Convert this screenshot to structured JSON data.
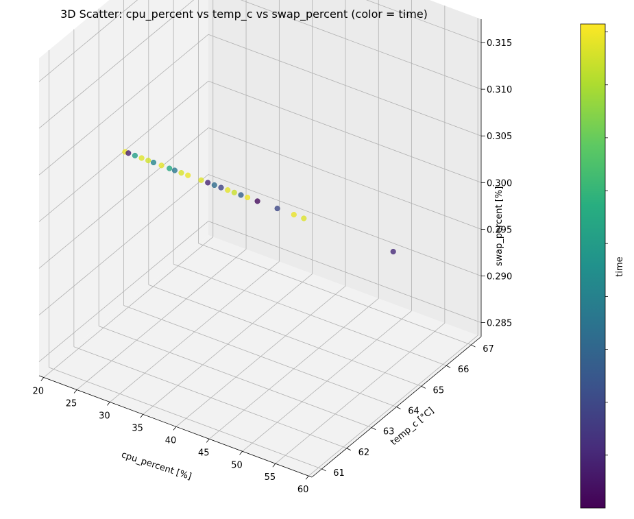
{
  "chart_data": {
    "type": "scatter",
    "title": "3D Scatter: cpu_percent vs temp_c vs swap_percent (color = time)",
    "xlabel": "cpu_percent [%]",
    "ylabel": "temp_c [°C]",
    "zlabel": "swap_percent [%]",
    "xticks": [
      "20",
      "25",
      "30",
      "35",
      "40",
      "45",
      "50",
      "55",
      "60"
    ],
    "yticks": [
      "61",
      "62",
      "63",
      "64",
      "65",
      "66",
      "67"
    ],
    "zticks": [
      "0.285",
      "0.290",
      "0.295",
      "0.300",
      "0.305",
      "0.310",
      "0.315"
    ],
    "colorbar_label": "time",
    "colormap": "viridis",
    "grid": true,
    "points": [
      {
        "cpu_percent": 19.5,
        "temp_c": 64,
        "swap_percent": 0.3,
        "time": 0.97
      },
      {
        "cpu_percent": 20.0,
        "temp_c": 64,
        "swap_percent": 0.3,
        "time": 0.08
      },
      {
        "cpu_percent": 21.0,
        "temp_c": 64,
        "swap_percent": 0.3,
        "time": 0.55
      },
      {
        "cpu_percent": 22.0,
        "temp_c": 64,
        "swap_percent": 0.3,
        "time": 0.95
      },
      {
        "cpu_percent": 23.0,
        "temp_c": 64,
        "swap_percent": 0.3,
        "time": 0.93
      },
      {
        "cpu_percent": 23.8,
        "temp_c": 64,
        "swap_percent": 0.3,
        "time": 0.45
      },
      {
        "cpu_percent": 25.0,
        "temp_c": 64,
        "swap_percent": 0.3,
        "time": 0.96
      },
      {
        "cpu_percent": 26.2,
        "temp_c": 64,
        "swap_percent": 0.3,
        "time": 0.6
      },
      {
        "cpu_percent": 27.0,
        "temp_c": 64,
        "swap_percent": 0.3,
        "time": 0.4
      },
      {
        "cpu_percent": 28.0,
        "temp_c": 64,
        "swap_percent": 0.3,
        "time": 0.94
      },
      {
        "cpu_percent": 29.0,
        "temp_c": 64,
        "swap_percent": 0.3,
        "time": 0.97
      },
      {
        "cpu_percent": 31.0,
        "temp_c": 64,
        "swap_percent": 0.3,
        "time": 0.95
      },
      {
        "cpu_percent": 32.0,
        "temp_c": 64,
        "swap_percent": 0.3,
        "time": 0.1
      },
      {
        "cpu_percent": 33.0,
        "temp_c": 64,
        "swap_percent": 0.3,
        "time": 0.35
      },
      {
        "cpu_percent": 34.0,
        "temp_c": 64,
        "swap_percent": 0.3,
        "time": 0.2
      },
      {
        "cpu_percent": 35.0,
        "temp_c": 64,
        "swap_percent": 0.3,
        "time": 0.96
      },
      {
        "cpu_percent": 36.0,
        "temp_c": 64,
        "swap_percent": 0.3,
        "time": 0.92
      },
      {
        "cpu_percent": 37.0,
        "temp_c": 64,
        "swap_percent": 0.3,
        "time": 0.3
      },
      {
        "cpu_percent": 38.0,
        "temp_c": 64,
        "swap_percent": 0.3,
        "time": 0.98
      },
      {
        "cpu_percent": 39.5,
        "temp_c": 64,
        "swap_percent": 0.3,
        "time": 0.03
      },
      {
        "cpu_percent": 42.5,
        "temp_c": 64,
        "swap_percent": 0.3,
        "time": 0.22
      },
      {
        "cpu_percent": 45.0,
        "temp_c": 64,
        "swap_percent": 0.3,
        "time": 0.97
      },
      {
        "cpu_percent": 46.5,
        "temp_c": 64,
        "swap_percent": 0.3,
        "time": 0.95
      },
      {
        "cpu_percent": 60.0,
        "temp_c": 64,
        "swap_percent": 0.3,
        "time": 0.12
      }
    ]
  }
}
